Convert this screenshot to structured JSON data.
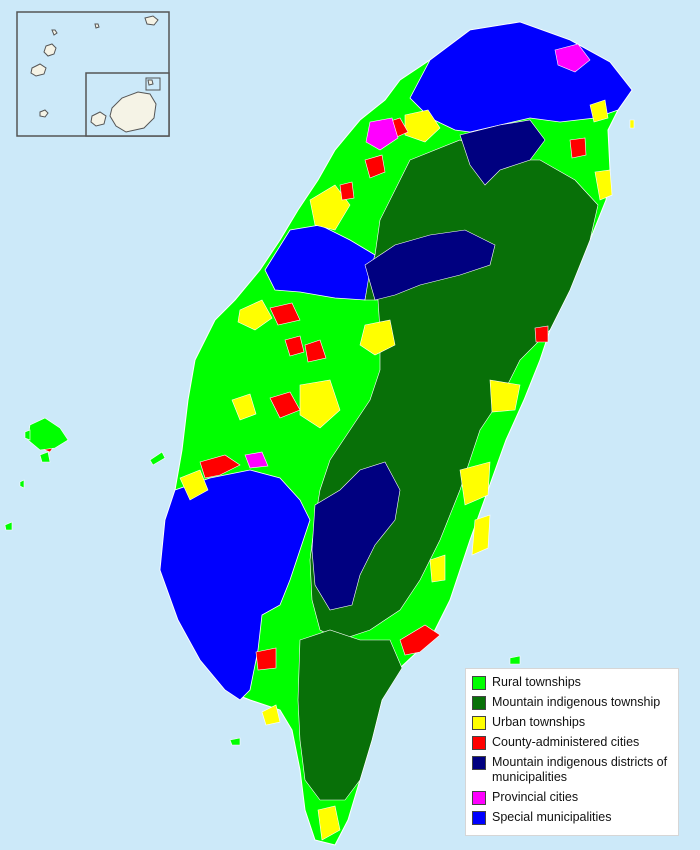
{
  "colors": {
    "sea": "#cce9f9",
    "rural_townships": "#00ff00",
    "mountain_indigenous_township": "#087008",
    "urban_townships": "#ffff00",
    "county_administered_cities": "#ff0000",
    "mountain_indigenous_districts": "#000080",
    "provincial_cities": "#ff00ff",
    "special_municipalities": "#0000ff",
    "inset_land": "#f5f3e6"
  },
  "legend": {
    "items": [
      {
        "label": "Rural townships",
        "color": "#00ff00"
      },
      {
        "label": "Mountain indigenous township",
        "color": "#087008"
      },
      {
        "label": "Urban townships",
        "color": "#ffff00"
      },
      {
        "label": "County-administered cities",
        "color": "#ff0000"
      },
      {
        "label": "Mountain indigenous districts of municipalities",
        "color": "#000080"
      },
      {
        "label": "Provincial cities",
        "color": "#ff00ff"
      },
      {
        "label": "Special municipalities",
        "color": "#0000ff"
      }
    ]
  }
}
